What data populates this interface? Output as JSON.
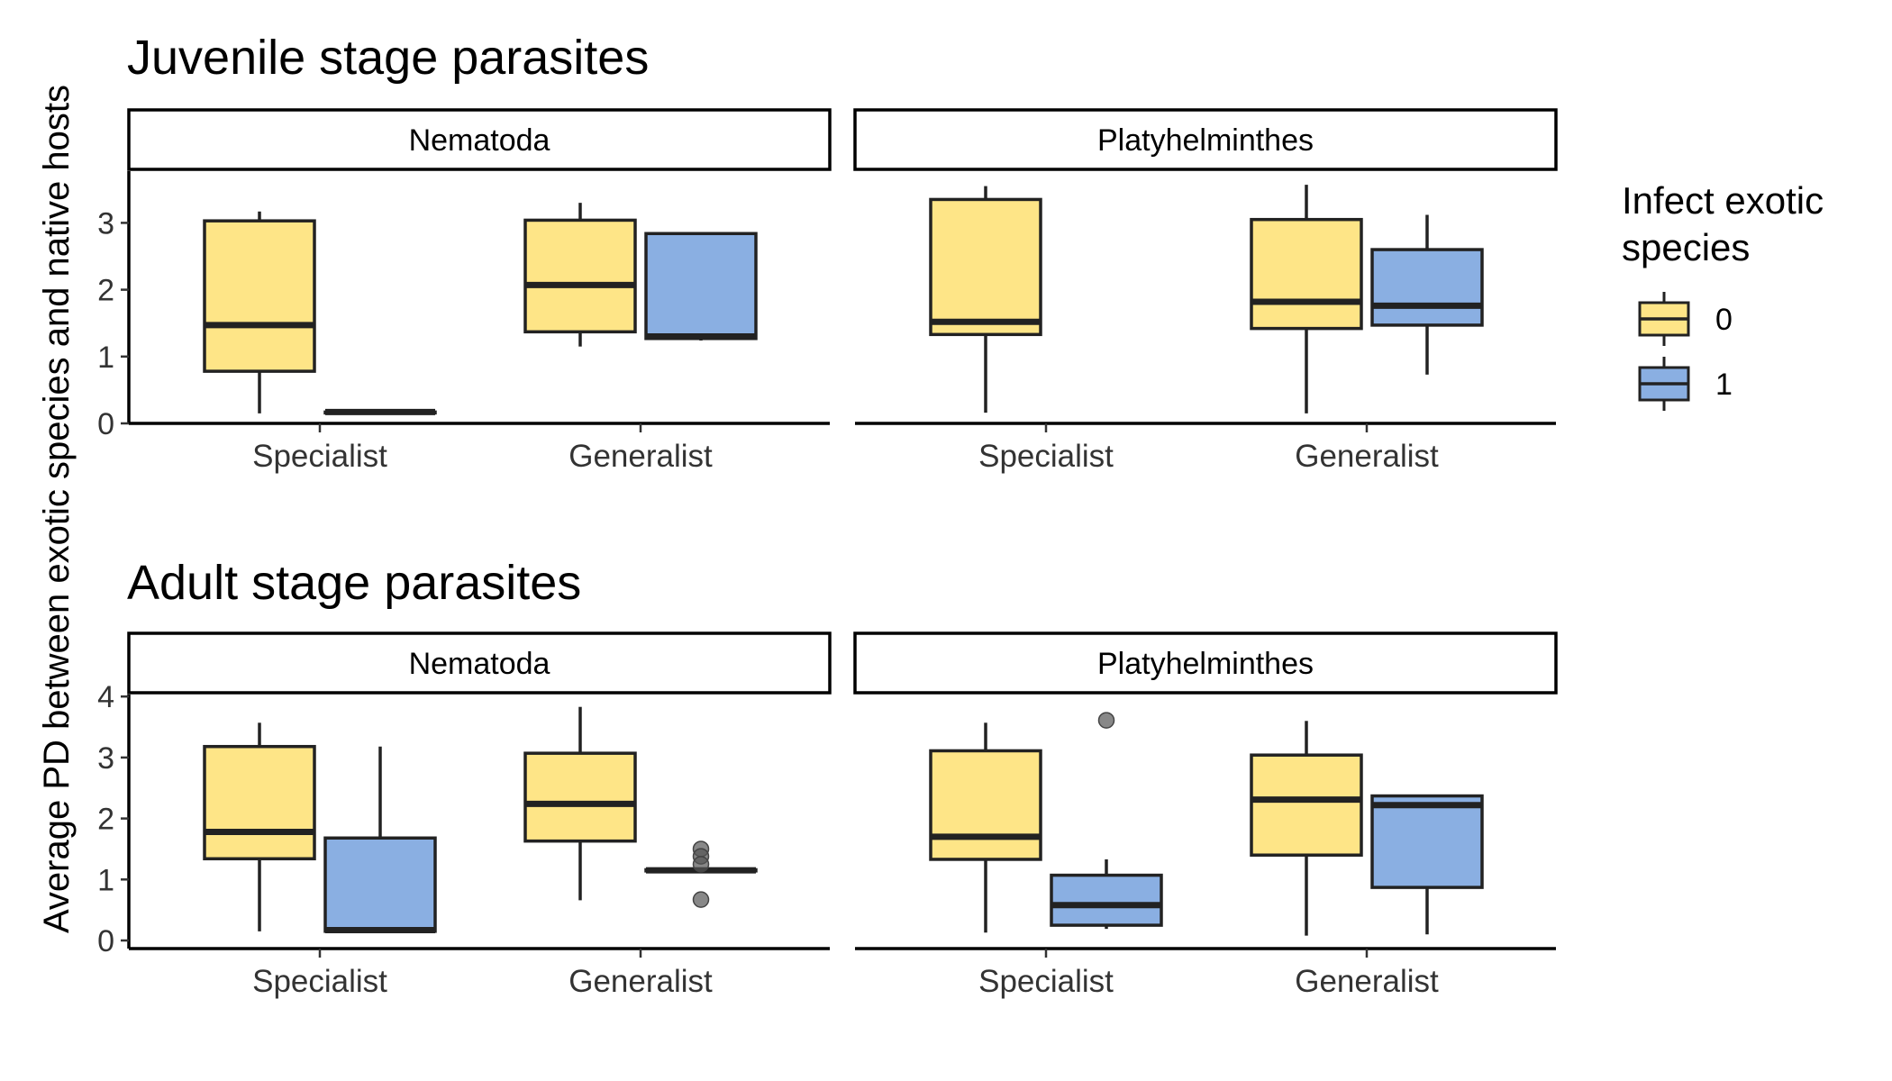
{
  "chart_data": [
    {
      "type": "boxplot",
      "title": "Juvenile stage parasites",
      "ylim": [
        0,
        3.75
      ],
      "y_ticks": [
        0,
        1,
        2,
        3
      ],
      "x_categories": [
        "Specialist",
        "Generalist"
      ],
      "panels": [
        {
          "strip": "Nematoda",
          "boxes": [
            {
              "category": "Specialist",
              "group": "0",
              "min": 0.15,
              "q1": 0.78,
              "median": 1.47,
              "q3": 3.03,
              "max": 3.17,
              "outliers": []
            },
            {
              "category": "Specialist",
              "group": "1",
              "min": 0.17,
              "q1": 0.17,
              "median": 0.17,
              "q3": 0.17,
              "max": 0.17,
              "outliers": []
            },
            {
              "category": "Generalist",
              "group": "0",
              "min": 1.15,
              "q1": 1.37,
              "median": 2.07,
              "q3": 3.04,
              "max": 3.3,
              "outliers": []
            },
            {
              "category": "Generalist",
              "group": "1",
              "min": 1.24,
              "q1": 1.27,
              "median": 1.3,
              "q3": 2.84,
              "max": 2.84,
              "outliers": []
            }
          ]
        },
        {
          "strip": "Platyhelminthes",
          "boxes": [
            {
              "category": "Specialist",
              "group": "0",
              "min": 0.16,
              "q1": 1.33,
              "median": 1.52,
              "q3": 3.35,
              "max": 3.55,
              "outliers": []
            },
            {
              "category": "Generalist",
              "group": "0",
              "min": 0.15,
              "q1": 1.42,
              "median": 1.82,
              "q3": 3.05,
              "max": 3.57,
              "outliers": []
            },
            {
              "category": "Generalist",
              "group": "1",
              "min": 0.73,
              "q1": 1.47,
              "median": 1.76,
              "q3": 2.6,
              "max": 3.12,
              "outliers": []
            }
          ]
        }
      ]
    },
    {
      "type": "boxplot",
      "title": "Adult stage parasites",
      "ylim": [
        0,
        4.0
      ],
      "y_ticks": [
        0,
        1,
        2,
        3,
        4
      ],
      "x_categories": [
        "Specialist",
        "Generalist"
      ],
      "panels": [
        {
          "strip": "Nematoda",
          "boxes": [
            {
              "category": "Specialist",
              "group": "0",
              "min": 0.15,
              "q1": 1.34,
              "median": 1.78,
              "q3": 3.18,
              "max": 3.57,
              "outliers": []
            },
            {
              "category": "Specialist",
              "group": "1",
              "min": 0.15,
              "q1": 0.15,
              "median": 0.17,
              "q3": 1.68,
              "max": 3.18,
              "outliers": []
            },
            {
              "category": "Generalist",
              "group": "0",
              "min": 0.66,
              "q1": 1.63,
              "median": 2.24,
              "q3": 3.07,
              "max": 3.83,
              "outliers": []
            },
            {
              "category": "Generalist",
              "group": "1",
              "min": 1.14,
              "q1": 1.14,
              "median": 1.15,
              "q3": 1.16,
              "max": 1.16,
              "outliers": [
                1.5,
                1.38,
                1.25,
                0.67
              ]
            }
          ]
        },
        {
          "strip": "Platyhelminthes",
          "boxes": [
            {
              "category": "Specialist",
              "group": "0",
              "min": 0.13,
              "q1": 1.33,
              "median": 1.7,
              "q3": 3.11,
              "max": 3.57,
              "outliers": []
            },
            {
              "category": "Specialist",
              "group": "1",
              "min": 0.19,
              "q1": 0.25,
              "median": 0.58,
              "q3": 1.07,
              "max": 1.33,
              "outliers": [
                3.61
              ]
            },
            {
              "category": "Generalist",
              "group": "0",
              "min": 0.08,
              "q1": 1.4,
              "median": 2.31,
              "q3": 3.04,
              "max": 3.6,
              "outliers": []
            },
            {
              "category": "Generalist",
              "group": "1",
              "min": 0.1,
              "q1": 0.87,
              "median": 2.22,
              "q3": 2.37,
              "max": 2.37,
              "outliers": []
            }
          ]
        }
      ]
    }
  ],
  "y_axis_title": "Average PD between exotic species and native hosts",
  "legend": {
    "title_line1": "Infect exotic",
    "title_line2": "species",
    "entries": [
      {
        "label": "0",
        "color": "#FEE587"
      },
      {
        "label": "1",
        "color": "#8AAFE2"
      }
    ]
  },
  "colors": {
    "group_0": "#FEE587",
    "group_1": "#8AAFE2",
    "outline": "#222222",
    "outlier": "#555555"
  }
}
